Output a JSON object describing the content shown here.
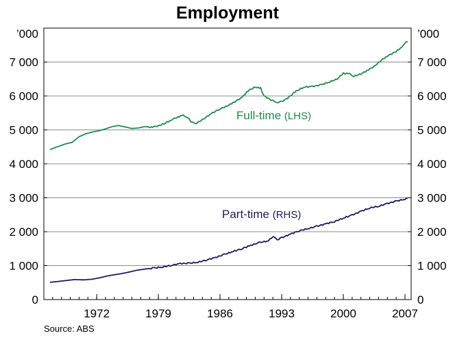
{
  "chart_data": {
    "type": "line",
    "title": "Employment",
    "source": "Source: ABS",
    "y_left_unit": "’000",
    "y_right_unit": "’000",
    "ylim_left": [
      0,
      8000
    ],
    "ylim_right": [
      0,
      8000
    ],
    "y_ticks": [
      0,
      1000,
      2000,
      3000,
      4000,
      5000,
      6000,
      7000
    ],
    "y_tick_labels": [
      "0",
      "1 000",
      "2 000",
      "3 000",
      "4 000",
      "5 000",
      "6 000",
      "7 000"
    ],
    "xlim": [
      1966,
      2007.7
    ],
    "x_ticks": [
      1972,
      1979,
      1986,
      1993,
      2000,
      2007
    ],
    "x_tick_labels": [
      "1972",
      "1979",
      "1986",
      "1993",
      "2000",
      "2007"
    ],
    "grid": "horizontal",
    "series": [
      {
        "name": "Full-time",
        "axis_note": "(LHS)",
        "color": "#1e8a4a",
        "x": [
          1966.7,
          1967.5,
          1968.5,
          1969.2,
          1970.0,
          1970.7,
          1971.5,
          1972.2,
          1973.0,
          1973.8,
          1974.5,
          1975.2,
          1976.0,
          1976.8,
          1977.5,
          1978.2,
          1979.0,
          1979.8,
          1980.5,
          1981.2,
          1981.8,
          1982.3,
          1982.7,
          1983.2,
          1984.0,
          1985.0,
          1986.0,
          1986.8,
          1987.5,
          1988.5,
          1989.2,
          1990.0,
          1990.6,
          1991.0,
          1991.8,
          1992.5,
          1993.0,
          1993.8,
          1994.5,
          1995.5,
          1996.5,
          1997.5,
          1998.5,
          1999.3,
          2000.0,
          2000.7,
          2001.2,
          2002.0,
          2002.7,
          2003.5,
          2004.3,
          2005.0,
          2005.8,
          2006.5,
          2007.0,
          2007.3
        ],
        "y": [
          4420,
          4500,
          4590,
          4630,
          4800,
          4880,
          4940,
          4970,
          5030,
          5100,
          5130,
          5090,
          5040,
          5060,
          5100,
          5080,
          5120,
          5200,
          5300,
          5380,
          5430,
          5370,
          5250,
          5180,
          5300,
          5480,
          5620,
          5700,
          5800,
          5960,
          6160,
          6260,
          6230,
          6000,
          5880,
          5810,
          5830,
          5960,
          6120,
          6260,
          6280,
          6330,
          6420,
          6500,
          6670,
          6650,
          6580,
          6650,
          6750,
          6870,
          7050,
          7180,
          7280,
          7400,
          7560,
          7600
        ]
      },
      {
        "name": "Part-time",
        "axis_note": "(RHS)",
        "color": "#1c1a5c",
        "x": [
          1966.7,
          1967.5,
          1968.5,
          1969.5,
          1970.5,
          1971.5,
          1972.5,
          1973.5,
          1974.5,
          1975.5,
          1976.5,
          1977.5,
          1978.5,
          1979.5,
          1980.5,
          1981.5,
          1982.5,
          1983.5,
          1984.5,
          1985.5,
          1986.5,
          1987.5,
          1988.5,
          1989.5,
          1990.5,
          1991.5,
          1992.0,
          1992.5,
          1993.0,
          1994.0,
          1995.0,
          1996.0,
          1997.0,
          1998.0,
          1999.0,
          2000.0,
          2001.0,
          2002.0,
          2003.0,
          2004.0,
          2005.0,
          2006.0,
          2007.0,
          2007.3
        ],
        "y": [
          510,
          530,
          560,
          590,
          580,
          600,
          650,
          710,
          750,
          800,
          860,
          900,
          930,
          960,
          1010,
          1060,
          1070,
          1100,
          1170,
          1240,
          1330,
          1420,
          1500,
          1600,
          1680,
          1730,
          1870,
          1760,
          1820,
          1930,
          2030,
          2090,
          2160,
          2230,
          2300,
          2400,
          2490,
          2600,
          2700,
          2750,
          2830,
          2900,
          2960,
          2980
        ]
      }
    ]
  }
}
